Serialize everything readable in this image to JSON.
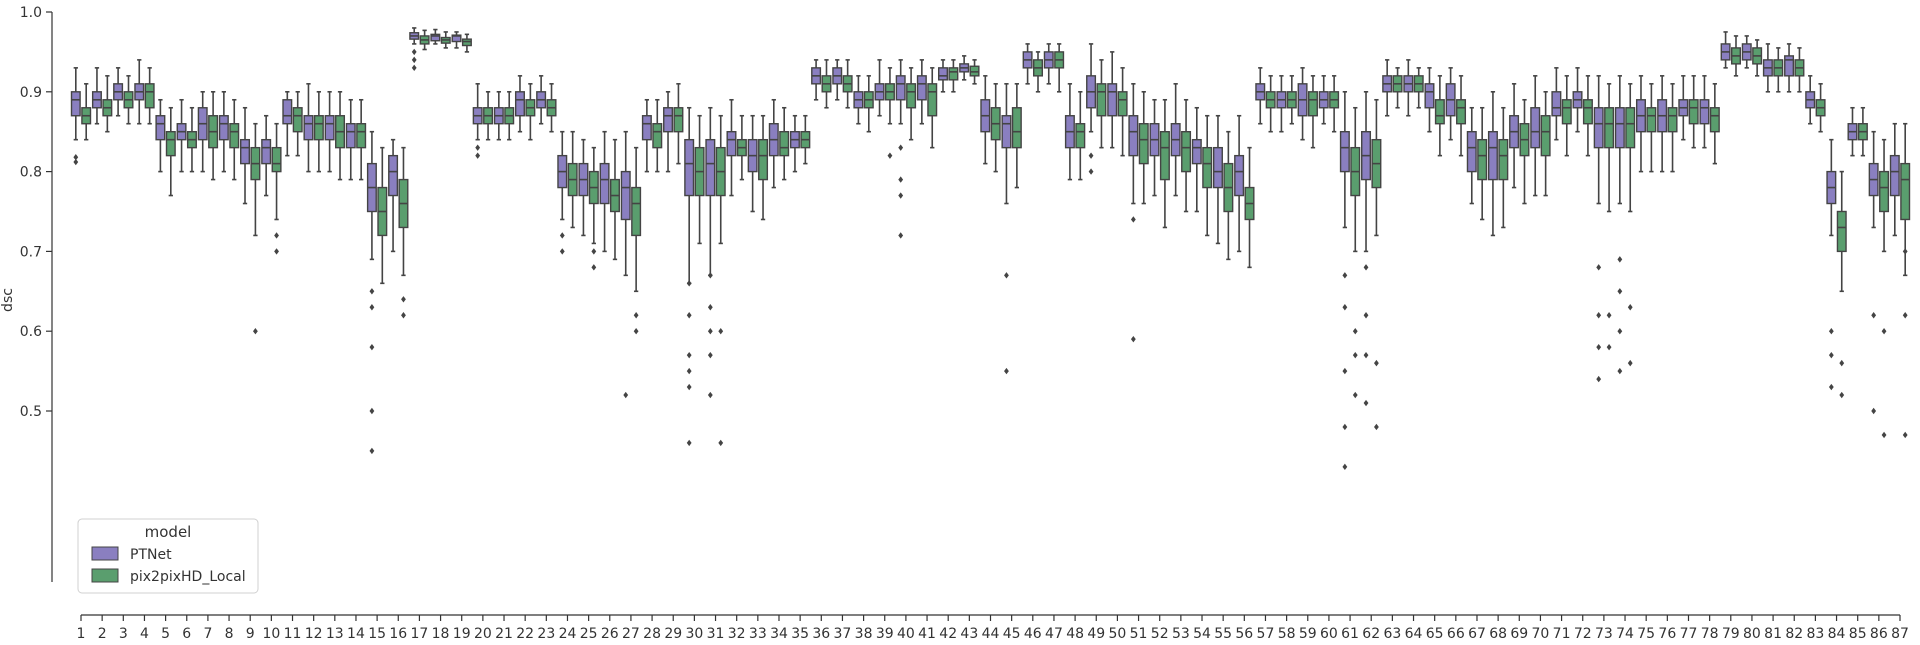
{
  "chart_data": {
    "type": "box",
    "ylabel": "dsc",
    "xlabel": "",
    "ylim": [
      0.4,
      1.0
    ],
    "yticks": [
      "0.5",
      "0.6",
      "0.7",
      "0.8",
      "0.9",
      "1.0"
    ],
    "legend": {
      "title": "model",
      "placement": "lower-left"
    },
    "categories": [
      "1",
      "2",
      "3",
      "4",
      "5",
      "6",
      "7",
      "8",
      "9",
      "10",
      "11",
      "12",
      "13",
      "14",
      "15",
      "16",
      "17",
      "18",
      "19",
      "20",
      "21",
      "22",
      "23",
      "24",
      "25",
      "26",
      "27",
      "28",
      "29",
      "30",
      "31",
      "32",
      "33",
      "34",
      "35",
      "36",
      "37",
      "38",
      "39",
      "40",
      "41",
      "42",
      "43",
      "44",
      "45",
      "46",
      "47",
      "48",
      "49",
      "50",
      "51",
      "52",
      "53",
      "54",
      "55",
      "56",
      "57",
      "58",
      "59",
      "60",
      "61",
      "62",
      "63",
      "64",
      "65",
      "66",
      "67",
      "68",
      "69",
      "70",
      "71",
      "72",
      "73",
      "74",
      "75",
      "76",
      "77",
      "78",
      "79",
      "80",
      "81",
      "82",
      "83",
      "84",
      "85",
      "86",
      "87"
    ],
    "series": [
      {
        "name": "PTNet",
        "color": "#8a7fc0",
        "median": [
          0.89,
          0.89,
          0.9,
          0.9,
          0.86,
          0.85,
          0.86,
          0.86,
          0.83,
          0.83,
          0.87,
          0.86,
          0.86,
          0.85,
          0.78,
          0.8,
          0.97,
          0.97,
          0.97,
          0.87,
          0.87,
          0.89,
          0.89,
          0.8,
          0.79,
          0.79,
          0.78,
          0.86,
          0.87,
          0.81,
          0.81,
          0.84,
          0.82,
          0.84,
          0.84,
          0.92,
          0.92,
          0.89,
          0.9,
          0.91,
          0.91,
          0.92,
          0.93,
          0.87,
          0.86,
          0.94,
          0.94,
          0.85,
          0.9,
          0.9,
          0.85,
          0.84,
          0.84,
          0.83,
          0.8,
          0.8,
          0.9,
          0.89,
          0.89,
          0.89,
          0.83,
          0.82,
          0.91,
          0.91,
          0.9,
          0.89,
          0.83,
          0.83,
          0.85,
          0.85,
          0.88,
          0.89,
          0.86,
          0.86,
          0.87,
          0.87,
          0.88,
          0.88,
          0.95,
          0.95,
          0.93,
          0.94,
          0.89,
          0.78,
          0.85,
          0.79,
          0.8
        ],
        "q1": [
          0.87,
          0.88,
          0.89,
          0.89,
          0.84,
          0.84,
          0.84,
          0.84,
          0.81,
          0.81,
          0.86,
          0.84,
          0.84,
          0.83,
          0.75,
          0.77,
          0.966,
          0.964,
          0.963,
          0.86,
          0.86,
          0.87,
          0.88,
          0.78,
          0.77,
          0.76,
          0.74,
          0.84,
          0.85,
          0.77,
          0.77,
          0.82,
          0.8,
          0.82,
          0.83,
          0.91,
          0.91,
          0.88,
          0.89,
          0.89,
          0.89,
          0.915,
          0.925,
          0.85,
          0.83,
          0.93,
          0.93,
          0.83,
          0.88,
          0.87,
          0.82,
          0.82,
          0.82,
          0.81,
          0.78,
          0.77,
          0.89,
          0.88,
          0.87,
          0.88,
          0.8,
          0.79,
          0.9,
          0.9,
          0.88,
          0.87,
          0.8,
          0.79,
          0.83,
          0.83,
          0.87,
          0.88,
          0.83,
          0.83,
          0.85,
          0.85,
          0.87,
          0.86,
          0.94,
          0.94,
          0.92,
          0.92,
          0.88,
          0.76,
          0.84,
          0.77,
          0.77
        ],
        "q3": [
          0.9,
          0.9,
          0.91,
          0.91,
          0.87,
          0.86,
          0.88,
          0.87,
          0.84,
          0.84,
          0.89,
          0.87,
          0.87,
          0.86,
          0.81,
          0.82,
          0.974,
          0.972,
          0.971,
          0.88,
          0.88,
          0.9,
          0.9,
          0.82,
          0.81,
          0.81,
          0.8,
          0.87,
          0.88,
          0.84,
          0.84,
          0.85,
          0.84,
          0.86,
          0.85,
          0.93,
          0.93,
          0.9,
          0.91,
          0.92,
          0.92,
          0.93,
          0.935,
          0.89,
          0.87,
          0.95,
          0.95,
          0.87,
          0.92,
          0.91,
          0.87,
          0.86,
          0.86,
          0.84,
          0.83,
          0.82,
          0.91,
          0.9,
          0.91,
          0.9,
          0.85,
          0.85,
          0.92,
          0.92,
          0.91,
          0.91,
          0.85,
          0.85,
          0.87,
          0.88,
          0.9,
          0.9,
          0.88,
          0.88,
          0.89,
          0.89,
          0.89,
          0.89,
          0.96,
          0.96,
          0.94,
          0.945,
          0.9,
          0.8,
          0.86,
          0.81,
          0.82
        ],
        "whislo": [
          0.84,
          0.86,
          0.87,
          0.86,
          0.8,
          0.8,
          0.8,
          0.8,
          0.76,
          0.77,
          0.82,
          0.8,
          0.8,
          0.79,
          0.69,
          0.7,
          0.96,
          0.96,
          0.955,
          0.84,
          0.84,
          0.85,
          0.86,
          0.74,
          0.72,
          0.7,
          0.67,
          0.8,
          0.8,
          0.66,
          0.67,
          0.77,
          0.75,
          0.78,
          0.8,
          0.89,
          0.89,
          0.86,
          0.87,
          0.86,
          0.86,
          0.9,
          0.915,
          0.81,
          0.76,
          0.91,
          0.91,
          0.79,
          0.85,
          0.83,
          0.76,
          0.77,
          0.77,
          0.75,
          0.71,
          0.7,
          0.86,
          0.85,
          0.84,
          0.86,
          0.73,
          0.7,
          0.87,
          0.87,
          0.85,
          0.84,
          0.76,
          0.72,
          0.78,
          0.77,
          0.84,
          0.85,
          0.76,
          0.76,
          0.8,
          0.8,
          0.84,
          0.83,
          0.93,
          0.93,
          0.9,
          0.9,
          0.86,
          0.72,
          0.82,
          0.73,
          0.72
        ],
        "whishi": [
          0.93,
          0.93,
          0.93,
          0.94,
          0.89,
          0.89,
          0.9,
          0.9,
          0.88,
          0.87,
          0.9,
          0.91,
          0.9,
          0.89,
          0.85,
          0.84,
          0.98,
          0.978,
          0.975,
          0.91,
          0.9,
          0.92,
          0.92,
          0.85,
          0.84,
          0.85,
          0.85,
          0.89,
          0.9,
          0.88,
          0.88,
          0.89,
          0.87,
          0.89,
          0.87,
          0.94,
          0.94,
          0.92,
          0.94,
          0.94,
          0.94,
          0.94,
          0.945,
          0.92,
          0.91,
          0.96,
          0.96,
          0.91,
          0.96,
          0.95,
          0.91,
          0.89,
          0.91,
          0.88,
          0.87,
          0.87,
          0.93,
          0.92,
          0.93,
          0.92,
          0.9,
          0.9,
          0.94,
          0.94,
          0.93,
          0.93,
          0.88,
          0.9,
          0.91,
          0.92,
          0.93,
          0.93,
          0.92,
          0.92,
          0.92,
          0.92,
          0.92,
          0.92,
          0.975,
          0.97,
          0.96,
          0.96,
          0.92,
          0.84,
          0.88,
          0.85,
          0.86
        ],
        "fliers": {
          "1": [
            0.812,
            0.818
          ],
          "15": [
            0.63,
            0.58,
            0.5,
            0.45,
            0.65
          ],
          "17": [
            0.95,
            0.94,
            0.93
          ],
          "20": [
            0.83,
            0.82
          ],
          "24": [
            0.72,
            0.7
          ],
          "27": [
            0.52
          ],
          "30": [
            0.46,
            0.55,
            0.53,
            0.57,
            0.62,
            0.66
          ],
          "31": [
            0.52,
            0.57,
            0.6,
            0.63,
            0.67
          ],
          "40": [
            0.72,
            0.77,
            0.79,
            0.83
          ],
          "45": [
            0.55,
            0.67
          ],
          "49": [
            0.8,
            0.82
          ],
          "51": [
            0.59,
            0.74
          ],
          "61": [
            0.48,
            0.43,
            0.55,
            0.63,
            0.67
          ],
          "62": [
            0.51,
            0.57,
            0.62,
            0.68
          ],
          "73": [
            0.54,
            0.58,
            0.62,
            0.68
          ],
          "74": [
            0.55,
            0.6,
            0.65,
            0.69
          ],
          "84": [
            0.6,
            0.57,
            0.53
          ],
          "86": [
            0.5,
            0.62
          ]
        }
      },
      {
        "name": "pix2pixHD_Local",
        "color": "#5a9e6e",
        "median": [
          0.87,
          0.88,
          0.89,
          0.9,
          0.84,
          0.84,
          0.85,
          0.85,
          0.81,
          0.81,
          0.87,
          0.86,
          0.85,
          0.85,
          0.75,
          0.76,
          0.965,
          0.965,
          0.963,
          0.87,
          0.87,
          0.88,
          0.88,
          0.79,
          0.78,
          0.77,
          0.76,
          0.85,
          0.87,
          0.8,
          0.8,
          0.83,
          0.82,
          0.83,
          0.84,
          0.91,
          0.91,
          0.89,
          0.9,
          0.9,
          0.9,
          0.925,
          0.925,
          0.86,
          0.85,
          0.93,
          0.94,
          0.85,
          0.9,
          0.89,
          0.84,
          0.83,
          0.83,
          0.81,
          0.78,
          0.76,
          0.89,
          0.89,
          0.89,
          0.89,
          0.8,
          0.81,
          0.91,
          0.91,
          0.87,
          0.88,
          0.82,
          0.82,
          0.84,
          0.85,
          0.88,
          0.88,
          0.86,
          0.86,
          0.87,
          0.87,
          0.88,
          0.87,
          0.945,
          0.945,
          0.93,
          0.93,
          0.88,
          0.73,
          0.85,
          0.78,
          0.79
        ],
        "q1": [
          0.86,
          0.87,
          0.88,
          0.88,
          0.82,
          0.83,
          0.83,
          0.83,
          0.79,
          0.8,
          0.85,
          0.84,
          0.83,
          0.83,
          0.72,
          0.73,
          0.96,
          0.961,
          0.958,
          0.86,
          0.86,
          0.87,
          0.87,
          0.77,
          0.76,
          0.75,
          0.72,
          0.83,
          0.85,
          0.77,
          0.77,
          0.82,
          0.79,
          0.82,
          0.83,
          0.9,
          0.9,
          0.88,
          0.89,
          0.88,
          0.87,
          0.915,
          0.92,
          0.84,
          0.83,
          0.92,
          0.93,
          0.83,
          0.87,
          0.87,
          0.81,
          0.79,
          0.8,
          0.78,
          0.75,
          0.74,
          0.88,
          0.88,
          0.87,
          0.88,
          0.77,
          0.78,
          0.9,
          0.9,
          0.86,
          0.86,
          0.79,
          0.79,
          0.82,
          0.82,
          0.86,
          0.86,
          0.83,
          0.83,
          0.85,
          0.85,
          0.86,
          0.85,
          0.935,
          0.935,
          0.92,
          0.92,
          0.87,
          0.7,
          0.84,
          0.75,
          0.74
        ],
        "q3": [
          0.88,
          0.89,
          0.9,
          0.91,
          0.85,
          0.85,
          0.87,
          0.86,
          0.83,
          0.83,
          0.88,
          0.87,
          0.87,
          0.86,
          0.78,
          0.79,
          0.97,
          0.968,
          0.966,
          0.88,
          0.88,
          0.89,
          0.89,
          0.81,
          0.8,
          0.79,
          0.78,
          0.86,
          0.88,
          0.83,
          0.83,
          0.84,
          0.84,
          0.85,
          0.85,
          0.92,
          0.92,
          0.9,
          0.91,
          0.91,
          0.91,
          0.93,
          0.932,
          0.88,
          0.88,
          0.94,
          0.95,
          0.86,
          0.91,
          0.9,
          0.86,
          0.85,
          0.85,
          0.83,
          0.81,
          0.78,
          0.9,
          0.9,
          0.9,
          0.9,
          0.83,
          0.84,
          0.92,
          0.92,
          0.89,
          0.89,
          0.84,
          0.84,
          0.86,
          0.87,
          0.89,
          0.89,
          0.88,
          0.88,
          0.88,
          0.88,
          0.89,
          0.88,
          0.955,
          0.955,
          0.94,
          0.94,
          0.89,
          0.75,
          0.86,
          0.8,
          0.81
        ],
        "whislo": [
          0.84,
          0.85,
          0.86,
          0.86,
          0.77,
          0.8,
          0.79,
          0.79,
          0.72,
          0.74,
          0.82,
          0.8,
          0.79,
          0.79,
          0.66,
          0.67,
          0.953,
          0.955,
          0.95,
          0.84,
          0.84,
          0.84,
          0.85,
          0.73,
          0.71,
          0.69,
          0.65,
          0.8,
          0.81,
          0.71,
          0.71,
          0.79,
          0.74,
          0.79,
          0.81,
          0.88,
          0.88,
          0.85,
          0.86,
          0.84,
          0.83,
          0.9,
          0.91,
          0.8,
          0.78,
          0.9,
          0.9,
          0.79,
          0.83,
          0.82,
          0.76,
          0.73,
          0.75,
          0.72,
          0.69,
          0.68,
          0.85,
          0.86,
          0.83,
          0.85,
          0.7,
          0.72,
          0.88,
          0.88,
          0.82,
          0.82,
          0.74,
          0.73,
          0.76,
          0.77,
          0.82,
          0.82,
          0.75,
          0.75,
          0.8,
          0.8,
          0.83,
          0.81,
          0.92,
          0.92,
          0.9,
          0.9,
          0.85,
          0.65,
          0.82,
          0.7,
          0.67
        ],
        "whishi": [
          0.91,
          0.92,
          0.92,
          0.93,
          0.88,
          0.88,
          0.9,
          0.89,
          0.86,
          0.86,
          0.9,
          0.9,
          0.9,
          0.89,
          0.83,
          0.83,
          0.977,
          0.975,
          0.972,
          0.9,
          0.9,
          0.91,
          0.91,
          0.85,
          0.83,
          0.84,
          0.83,
          0.89,
          0.91,
          0.87,
          0.87,
          0.87,
          0.87,
          0.88,
          0.87,
          0.94,
          0.94,
          0.92,
          0.93,
          0.93,
          0.93,
          0.94,
          0.94,
          0.91,
          0.91,
          0.95,
          0.96,
          0.9,
          0.94,
          0.93,
          0.9,
          0.89,
          0.89,
          0.87,
          0.85,
          0.83,
          0.92,
          0.92,
          0.92,
          0.92,
          0.88,
          0.89,
          0.93,
          0.93,
          0.92,
          0.92,
          0.88,
          0.88,
          0.89,
          0.9,
          0.92,
          0.92,
          0.91,
          0.91,
          0.91,
          0.91,
          0.92,
          0.91,
          0.97,
          0.965,
          0.955,
          0.955,
          0.91,
          0.8,
          0.88,
          0.84,
          0.86
        ],
        "fliers": {
          "9": [
            0.6
          ],
          "10": [
            0.7,
            0.72
          ],
          "16": [
            0.62,
            0.64
          ],
          "25": [
            0.68,
            0.7
          ],
          "27": [
            0.6,
            0.62
          ],
          "31": [
            0.46,
            0.6
          ],
          "39": [
            0.82
          ],
          "61": [
            0.52,
            0.57,
            0.6
          ],
          "62": [
            0.48,
            0.56
          ],
          "73": [
            0.58,
            0.62
          ],
          "74": [
            0.56,
            0.63
          ],
          "84": [
            0.52,
            0.56
          ],
          "86": [
            0.47,
            0.6
          ],
          "87": [
            0.47,
            0.62,
            0.7
          ]
        }
      }
    ]
  }
}
